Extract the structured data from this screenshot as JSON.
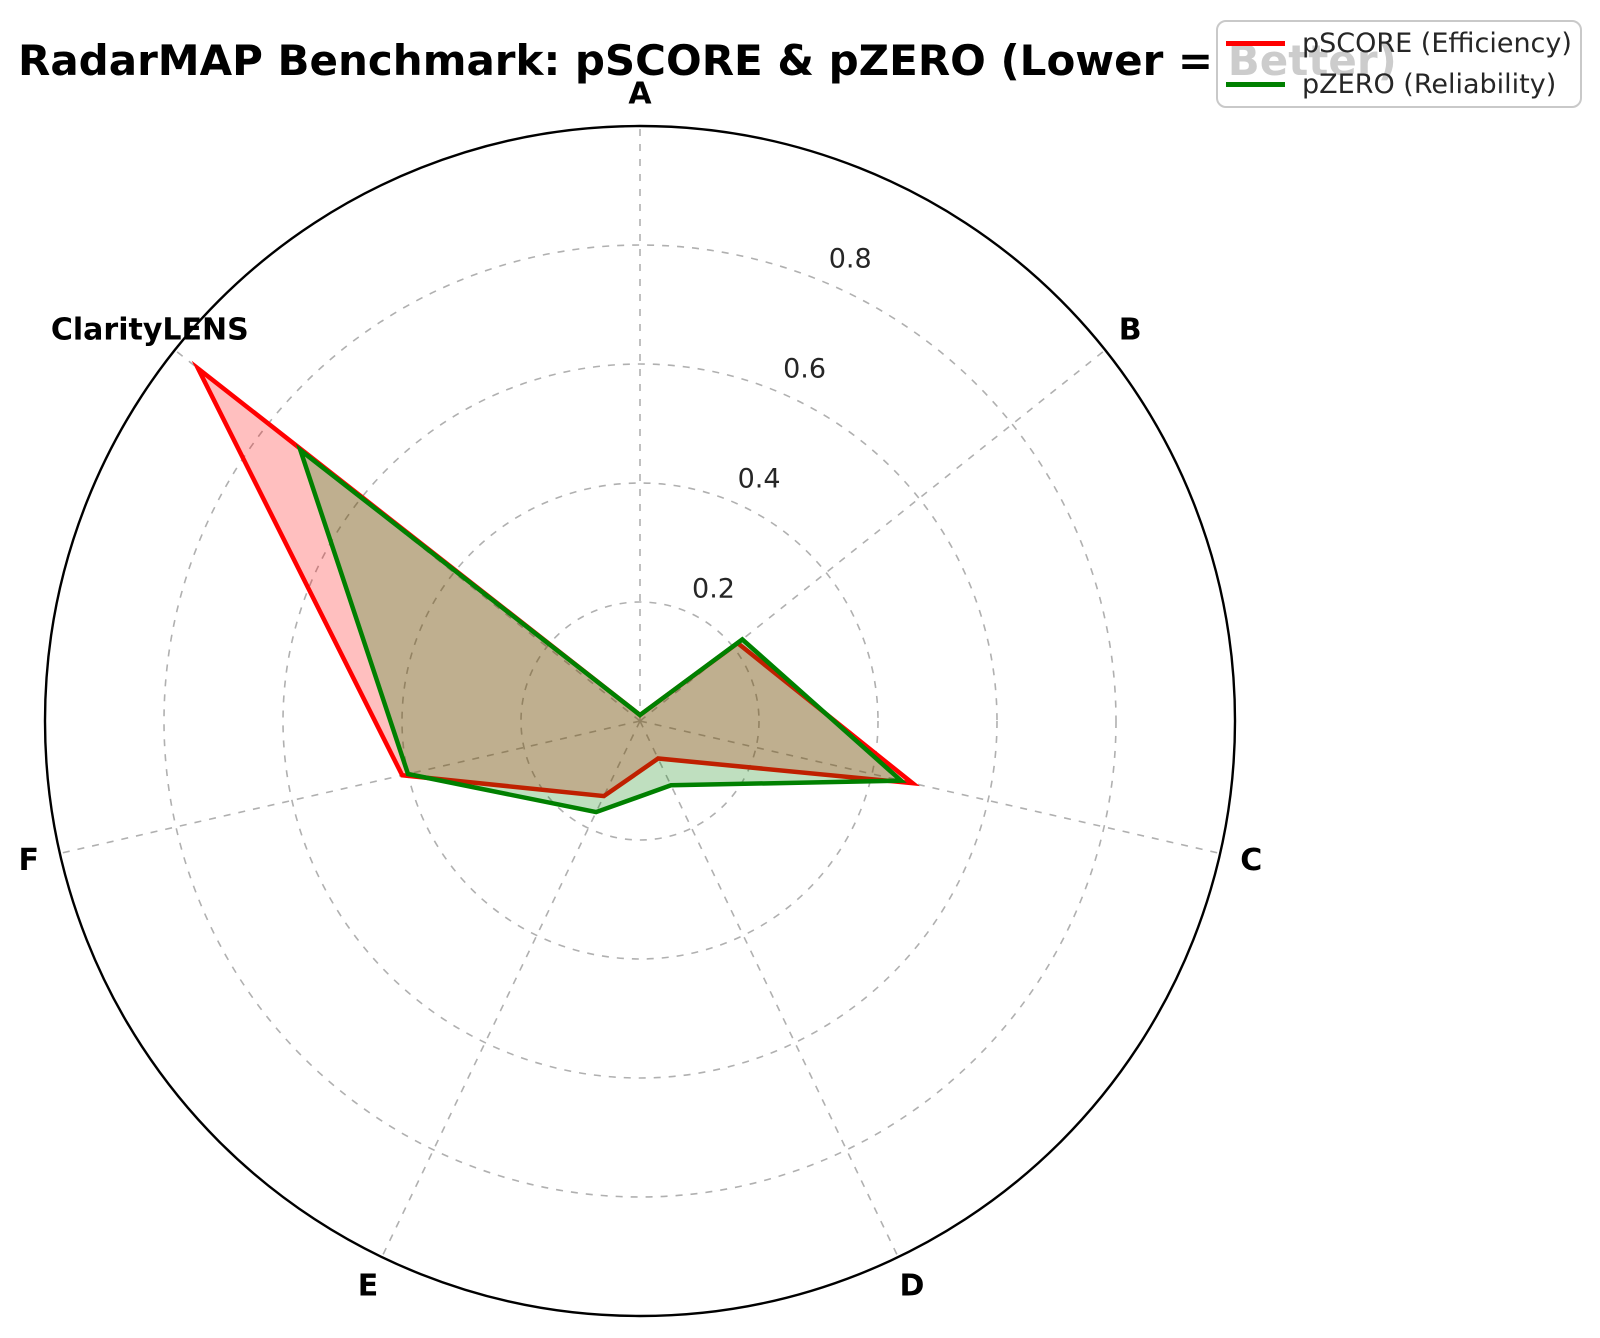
{
  "chart": {
    "title": "RadarMAP Benchmark: pSCORE & pZERO (Lower = Better)"
  },
  "legend": {
    "position": "upper right",
    "entries": [
      {
        "label": "pSCORE (Efficiency)",
        "color": "#ff0000"
      },
      {
        "label": "pZERO (Reliability)",
        "color": "#008000"
      }
    ]
  },
  "chart_data": {
    "type": "radar",
    "title": "RadarMAP Benchmark: pSCORE & pZERO (Lower = Better)",
    "categories": [
      "A",
      "B",
      "C",
      "D",
      "E",
      "F",
      "ClarityLENS"
    ],
    "series": [
      {
        "name": "pSCORE (Efficiency)",
        "color": "#ff0000",
        "fill_opacity": 0.25,
        "values": [
          0.01,
          0.21,
          0.47,
          0.07,
          0.14,
          0.41,
          0.95
        ]
      },
      {
        "name": "pZERO (Reliability)",
        "color": "#008000",
        "fill_opacity": 0.25,
        "values": [
          0.01,
          0.22,
          0.45,
          0.12,
          0.17,
          0.4,
          0.73
        ]
      }
    ],
    "radial_ticks": [
      0.2,
      0.4,
      0.6,
      0.8
    ],
    "rmax": 1.0,
    "start_angle_deg": 90,
    "direction": "clockwise",
    "grid": "dashed",
    "grid_color": "#b0b0b0",
    "outline_color": "#000000",
    "tick_label_color": "#262626",
    "axis_label_color": "#000000",
    "tick_label_angle_deg": 67.5,
    "legend_position": "upper right"
  }
}
